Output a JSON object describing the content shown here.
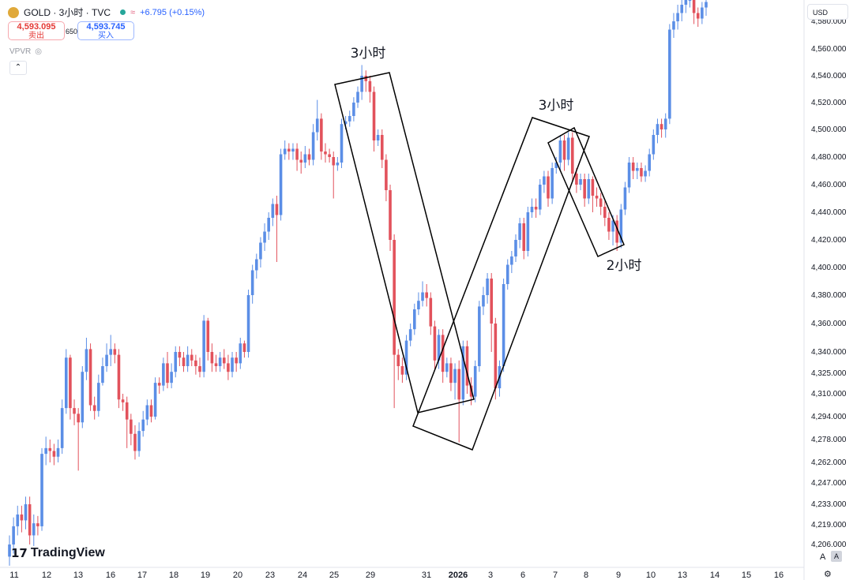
{
  "header": {
    "symbol": "GOLD · 3小时 · TVC",
    "change": "+6.795 (+0.15%)",
    "sell_price": "4,593.095",
    "sell_label": "卖出",
    "spread": "650",
    "buy_price": "4,593.745",
    "buy_label": "买入",
    "indicator": "VPVR",
    "currency": "USD"
  },
  "footer": {
    "logo_text": "TradingView",
    "corner_a": "A",
    "corner_b": "A"
  },
  "colors": {
    "up": "#5b8ee6",
    "down": "#e2525c",
    "box": "#000000"
  },
  "chart_data": {
    "type": "candlestick",
    "y_axis": {
      "position": "right",
      "labels": [
        {
          "value": 4580,
          "text": "4,580.000"
        },
        {
          "value": 4560,
          "text": "4,560.000"
        },
        {
          "value": 4540,
          "text": "4,540.000"
        },
        {
          "value": 4520,
          "text": "4,520.000"
        },
        {
          "value": 4500,
          "text": "4,500.000"
        },
        {
          "value": 4480,
          "text": "4,480.000"
        },
        {
          "value": 4460,
          "text": "4,460.000"
        },
        {
          "value": 4440,
          "text": "4,440.000"
        },
        {
          "value": 4420,
          "text": "4,420.000"
        },
        {
          "value": 4400,
          "text": "4,400.000"
        },
        {
          "value": 4380,
          "text": "4,380.000"
        },
        {
          "value": 4360,
          "text": "4,360.000"
        },
        {
          "value": 4340,
          "text": "4,340.000"
        },
        {
          "value": 4325,
          "text": "4,325.000"
        },
        {
          "value": 4310,
          "text": "4,310.000"
        },
        {
          "value": 4294,
          "text": "4,294.000"
        },
        {
          "value": 4278,
          "text": "4,278.000"
        },
        {
          "value": 4262,
          "text": "4,262.000"
        },
        {
          "value": 4247,
          "text": "4,247.000"
        },
        {
          "value": 4233,
          "text": "4,233.000"
        },
        {
          "value": 4219,
          "text": "4,219.000"
        },
        {
          "value": 4206,
          "text": "4,206.000"
        }
      ]
    },
    "x_axis": {
      "labels": [
        "11",
        "12",
        "13",
        "16",
        "17",
        "18",
        "19",
        "20",
        "23",
        "24",
        "25",
        "29",
        "31",
        "2026",
        "3",
        "6",
        "7",
        "8",
        "9",
        "10",
        "13",
        "14",
        "15",
        "16"
      ],
      "bold": "2026"
    },
    "annotations": [
      {
        "text": "3小时"
      },
      {
        "text": "3小时"
      },
      {
        "text": "2小时"
      }
    ],
    "candles": [
      [
        4198,
        4206,
        4192,
        4212
      ],
      [
        4206,
        4218,
        4200,
        4224
      ],
      [
        4218,
        4226,
        4212,
        4232
      ],
      [
        4226,
        4222,
        4214,
        4232
      ],
      [
        4222,
        4233,
        4216,
        4238
      ],
      [
        4233,
        4212,
        4206,
        4238
      ],
      [
        4212,
        4220,
        4205,
        4226
      ],
      [
        4220,
        4218,
        4212,
        4225
      ],
      [
        4218,
        4268,
        4215,
        4272
      ],
      [
        4268,
        4272,
        4260,
        4280
      ],
      [
        4272,
        4270,
        4262,
        4278
      ],
      [
        4270,
        4266,
        4260,
        4275
      ],
      [
        4266,
        4272,
        4262,
        4278
      ],
      [
        4272,
        4300,
        4268,
        4306
      ],
      [
        4300,
        4336,
        4296,
        4342
      ],
      [
        4336,
        4300,
        4292,
        4338
      ],
      [
        4300,
        4296,
        4288,
        4306
      ],
      [
        4296,
        4290,
        4256,
        4300
      ],
      [
        4290,
        4326,
        4286,
        4330
      ],
      [
        4326,
        4342,
        4320,
        4350
      ],
      [
        4342,
        4302,
        4298,
        4346
      ],
      [
        4302,
        4298,
        4292,
        4308
      ],
      [
        4298,
        4318,
        4294,
        4324
      ],
      [
        4318,
        4330,
        4316,
        4336
      ],
      [
        4330,
        4338,
        4326,
        4346
      ],
      [
        4338,
        4342,
        4330,
        4352
      ],
      [
        4342,
        4338,
        4332,
        4346
      ],
      [
        4338,
        4306,
        4300,
        4342
      ],
      [
        4306,
        4304,
        4298,
        4310
      ],
      [
        4304,
        4292,
        4272,
        4308
      ],
      [
        4292,
        4282,
        4274,
        4296
      ],
      [
        4282,
        4270,
        4264,
        4288
      ],
      [
        4270,
        4284,
        4266,
        4290
      ],
      [
        4284,
        4292,
        4280,
        4298
      ],
      [
        4292,
        4302,
        4288,
        4306
      ],
      [
        4302,
        4294,
        4290,
        4306
      ],
      [
        4294,
        4318,
        4292,
        4322
      ],
      [
        4318,
        4316,
        4310,
        4322
      ],
      [
        4316,
        4332,
        4312,
        4336
      ],
      [
        4332,
        4318,
        4314,
        4340
      ],
      [
        4318,
        4326,
        4314,
        4332
      ],
      [
        4326,
        4340,
        4322,
        4344
      ],
      [
        4340,
        4336,
        4330,
        4344
      ],
      [
        4336,
        4330,
        4326,
        4340
      ],
      [
        4330,
        4338,
        4326,
        4344
      ],
      [
        4338,
        4334,
        4330,
        4342
      ],
      [
        4334,
        4330,
        4324,
        4338
      ],
      [
        4330,
        4326,
        4322,
        4336
      ],
      [
        4326,
        4362,
        4322,
        4366
      ],
      [
        4362,
        4340,
        4334,
        4364
      ],
      [
        4340,
        4332,
        4326,
        4346
      ],
      [
        4332,
        4330,
        4326,
        4338
      ],
      [
        4330,
        4336,
        4326,
        4340
      ],
      [
        4336,
        4332,
        4328,
        4342
      ],
      [
        4332,
        4326,
        4320,
        4338
      ],
      [
        4326,
        4336,
        4322,
        4340
      ],
      [
        4336,
        4332,
        4326,
        4340
      ],
      [
        4332,
        4346,
        4328,
        4350
      ],
      [
        4346,
        4340,
        4336,
        4348
      ],
      [
        4340,
        4380,
        4336,
        4384
      ],
      [
        4380,
        4398,
        4374,
        4402
      ],
      [
        4398,
        4406,
        4392,
        4410
      ],
      [
        4406,
        4418,
        4400,
        4422
      ],
      [
        4418,
        4426,
        4412,
        4432
      ],
      [
        4426,
        4436,
        4420,
        4440
      ],
      [
        4436,
        4446,
        4430,
        4450
      ],
      [
        4446,
        4438,
        4404,
        4452
      ],
      [
        4438,
        4482,
        4434,
        4486
      ],
      [
        4482,
        4486,
        4478,
        4492
      ],
      [
        4486,
        4484,
        4478,
        4490
      ],
      [
        4484,
        4486,
        4478,
        4490
      ],
      [
        4486,
        4478,
        4470,
        4490
      ],
      [
        4478,
        4476,
        4468,
        4484
      ],
      [
        4476,
        4482,
        4472,
        4488
      ],
      [
        4482,
        4478,
        4474,
        4486
      ],
      [
        4478,
        4498,
        4474,
        4504
      ],
      [
        4498,
        4508,
        4492,
        4522
      ],
      [
        4508,
        4484,
        4478,
        4512
      ],
      [
        4484,
        4482,
        4476,
        4490
      ],
      [
        4482,
        4480,
        4476,
        4486
      ],
      [
        4480,
        4474,
        4450,
        4484
      ],
      [
        4474,
        4476,
        4470,
        4480
      ],
      [
        4476,
        4504,
        4472,
        4508
      ],
      [
        4504,
        4506,
        4500,
        4510
      ],
      [
        4506,
        4510,
        4502,
        4514
      ],
      [
        4510,
        4520,
        4506,
        4524
      ],
      [
        4520,
        4528,
        4516,
        4532
      ],
      [
        4528,
        4540,
        4522,
        4548
      ],
      [
        4540,
        4536,
        4528,
        4544
      ],
      [
        4536,
        4528,
        4520,
        4540
      ],
      [
        4528,
        4492,
        4484,
        4532
      ],
      [
        4492,
        4496,
        4488,
        4500
      ],
      [
        4496,
        4478,
        4472,
        4500
      ],
      [
        4478,
        4456,
        4448,
        4482
      ],
      [
        4456,
        4420,
        4412,
        4460
      ],
      [
        4420,
        4338,
        4300,
        4424
      ],
      [
        4338,
        4330,
        4320,
        4342
      ],
      [
        4330,
        4324,
        4318,
        4336
      ],
      [
        4324,
        4348,
        4320,
        4352
      ],
      [
        4348,
        4356,
        4344,
        4360
      ],
      [
        4356,
        4370,
        4352,
        4374
      ],
      [
        4370,
        4376,
        4366,
        4382
      ],
      [
        4376,
        4382,
        4372,
        4390
      ],
      [
        4382,
        4378,
        4372,
        4388
      ],
      [
        4378,
        4358,
        4352,
        4382
      ],
      [
        4358,
        4334,
        4328,
        4362
      ],
      [
        4334,
        4352,
        4328,
        4356
      ],
      [
        4352,
        4326,
        4318,
        4356
      ],
      [
        4326,
        4332,
        4322,
        4336
      ],
      [
        4332,
        4318,
        4312,
        4336
      ],
      [
        4318,
        4328,
        4306,
        4332
      ],
      [
        4328,
        4306,
        4276,
        4334
      ],
      [
        4306,
        4344,
        4302,
        4348
      ],
      [
        4344,
        4316,
        4310,
        4348
      ],
      [
        4316,
        4308,
        4302,
        4322
      ],
      [
        4308,
        4330,
        4304,
        4334
      ],
      [
        4330,
        4372,
        4326,
        4376
      ],
      [
        4372,
        4380,
        4366,
        4386
      ],
      [
        4380,
        4392,
        4374,
        4396
      ],
      [
        4392,
        4360,
        4340,
        4396
      ],
      [
        4360,
        4314,
        4306,
        4364
      ],
      [
        4314,
        4330,
        4308,
        4334
      ],
      [
        4330,
        4388,
        4326,
        4392
      ],
      [
        4388,
        4402,
        4384,
        4406
      ],
      [
        4402,
        4408,
        4396,
        4412
      ],
      [
        4408,
        4420,
        4404,
        4424
      ],
      [
        4420,
        4432,
        4414,
        4436
      ],
      [
        4432,
        4412,
        4406,
        4436
      ],
      [
        4412,
        4440,
        4408,
        4444
      ],
      [
        4440,
        4444,
        4436,
        4450
      ],
      [
        4444,
        4442,
        4436,
        4450
      ],
      [
        4442,
        4460,
        4438,
        4464
      ],
      [
        4460,
        4466,
        4454,
        4470
      ],
      [
        4466,
        4450,
        4444,
        4470
      ],
      [
        4450,
        4472,
        4446,
        4476
      ],
      [
        4472,
        4476,
        4468,
        4480
      ],
      [
        4476,
        4492,
        4470,
        4496
      ],
      [
        4492,
        4478,
        4470,
        4496
      ],
      [
        4478,
        4494,
        4474,
        4498
      ],
      [
        4494,
        4468,
        4462,
        4498
      ],
      [
        4468,
        4460,
        4454,
        4472
      ],
      [
        4460,
        4464,
        4456,
        4468
      ],
      [
        4464,
        4450,
        4444,
        4468
      ],
      [
        4450,
        4464,
        4446,
        4468
      ],
      [
        4464,
        4452,
        4440,
        4466
      ],
      [
        4452,
        4450,
        4444,
        4458
      ],
      [
        4450,
        4444,
        4438,
        4454
      ],
      [
        4444,
        4436,
        4430,
        4448
      ],
      [
        4436,
        4426,
        4420,
        4440
      ],
      [
        4426,
        4434,
        4416,
        4438
      ],
      [
        4434,
        4418,
        4412,
        4438
      ],
      [
        4418,
        4442,
        4414,
        4446
      ],
      [
        4442,
        4458,
        4438,
        4462
      ],
      [
        4458,
        4476,
        4454,
        4480
      ],
      [
        4476,
        4470,
        4464,
        4480
      ],
      [
        4470,
        4472,
        4464,
        4476
      ],
      [
        4472,
        4466,
        4462,
        4476
      ],
      [
        4466,
        4470,
        4462,
        4474
      ],
      [
        4470,
        4482,
        4466,
        4486
      ],
      [
        4482,
        4496,
        4478,
        4500
      ],
      [
        4496,
        4504,
        4490,
        4508
      ],
      [
        4504,
        4500,
        4494,
        4508
      ],
      [
        4500,
        4508,
        4494,
        4512
      ],
      [
        4508,
        4574,
        4504,
        4578
      ],
      [
        4574,
        4580,
        4568,
        4586
      ],
      [
        4580,
        4586,
        4574,
        4592
      ],
      [
        4586,
        4592,
        4580,
        4598
      ],
      [
        4592,
        4596,
        4586,
        4602
      ],
      [
        4596,
        4600,
        4590,
        4606
      ],
      [
        4600,
        4586,
        4578,
        4604
      ],
      [
        4586,
        4582,
        4576,
        4590
      ],
      [
        4582,
        4590,
        4578,
        4594
      ],
      [
        4590,
        4594,
        4584,
        4598
      ]
    ]
  }
}
